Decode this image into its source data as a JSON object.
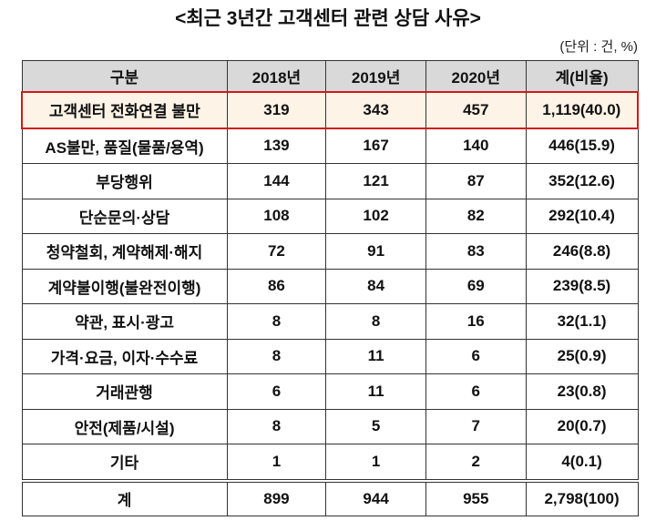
{
  "title": "<최근 3년간 고객센터 관련 상담 사유>",
  "unit": "(단위 : 건, %)",
  "headers": [
    "구분",
    "2018년",
    "2019년",
    "2020년",
    "계(비율)"
  ],
  "rows": [
    [
      "고객센터 전화연결 불만",
      "319",
      "343",
      "457",
      "1,119(40.0)"
    ],
    [
      "AS불만, 품질(물품/용역)",
      "139",
      "167",
      "140",
      "446(15.9)"
    ],
    [
      "부당행위",
      "144",
      "121",
      "87",
      "352(12.6)"
    ],
    [
      "단순문의·상담",
      "108",
      "102",
      "82",
      "292(10.4)"
    ],
    [
      "청약철회, 계약해제·해지",
      "72",
      "91",
      "83",
      "246(8.8)"
    ],
    [
      "계약불이행(불완전이행)",
      "86",
      "84",
      "69",
      "239(8.5)"
    ],
    [
      "약관, 표시·광고",
      "8",
      "8",
      "16",
      "32(1.1)"
    ],
    [
      "가격·요금, 이자·수수료",
      "8",
      "11",
      "6",
      "25(0.9)"
    ],
    [
      "거래관행",
      "6",
      "11",
      "6",
      "23(0.8)"
    ],
    [
      "안전(제품/시설)",
      "8",
      "5",
      "7",
      "20(0.7)"
    ],
    [
      "기타",
      "1",
      "1",
      "2",
      "4(0.1)"
    ]
  ],
  "total": [
    "계",
    "899",
    "944",
    "955",
    "2,798(100)"
  ],
  "colors": {
    "highlight_border": "#d0191c",
    "highlight_bg": "#fdf3e6",
    "header_bg": "#d9d9d9"
  }
}
